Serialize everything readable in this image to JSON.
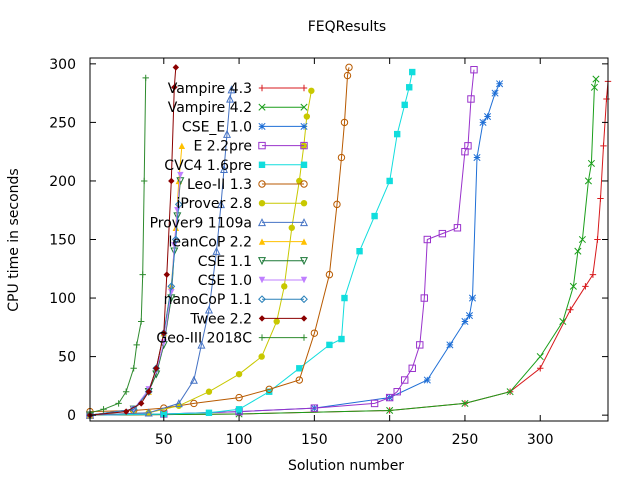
{
  "chart_data": {
    "type": "line",
    "title": "FEQResults",
    "xlabel": "Solution number",
    "ylabel": "CPU time in seconds",
    "xlim": [
      1,
      345
    ],
    "ylim": [
      -5,
      305
    ],
    "xticks": [
      50,
      100,
      150,
      200,
      250,
      300
    ],
    "yticks": [
      0,
      50,
      100,
      150,
      200,
      250,
      300
    ],
    "grid": false,
    "legend_position": "top-left",
    "series": [
      {
        "name": "Vampire 4.3",
        "color": "#d7191c",
        "marker": "plus",
        "x": [
          1,
          100,
          200,
          250,
          280,
          300,
          320,
          330,
          335,
          338,
          340,
          342,
          344,
          345
        ],
        "y": [
          0,
          1,
          4,
          10,
          20,
          40,
          90,
          110,
          120,
          150,
          185,
          230,
          270,
          285
        ]
      },
      {
        "name": "Vampire 4.2",
        "color": "#1a9e1a",
        "marker": "x",
        "x": [
          1,
          100,
          200,
          250,
          280,
          300,
          315,
          322,
          325,
          328,
          332,
          334,
          336,
          337
        ],
        "y": [
          0,
          1,
          4,
          10,
          20,
          50,
          80,
          110,
          140,
          150,
          200,
          215,
          280,
          287
        ]
      },
      {
        "name": "CSE_E 1.0",
        "color": "#1f6fd6",
        "marker": "star",
        "x": [
          1,
          50,
          100,
          150,
          200,
          225,
          240,
          250,
          253,
          255,
          258,
          262,
          265,
          270,
          273
        ],
        "y": [
          0,
          1,
          3,
          6,
          15,
          30,
          60,
          80,
          85,
          100,
          220,
          250,
          255,
          275,
          283
        ]
      },
      {
        "name": "E 2.2pre",
        "color": "#9932cc",
        "marker": "square",
        "x": [
          1,
          50,
          100,
          150,
          190,
          200,
          205,
          210,
          215,
          220,
          223,
          225,
          235,
          245,
          250,
          252,
          254,
          256
        ],
        "y": [
          0,
          1,
          3,
          6,
          10,
          15,
          20,
          30,
          40,
          60,
          100,
          150,
          155,
          160,
          225,
          230,
          270,
          295
        ]
      },
      {
        "name": "CVC4 1.6pre",
        "color": "#11dddd",
        "marker": "filled-square",
        "x": [
          1,
          50,
          80,
          100,
          120,
          140,
          160,
          168,
          170,
          180,
          190,
          200,
          205,
          210,
          213,
          215
        ],
        "y": [
          0,
          1,
          2,
          5,
          20,
          40,
          60,
          65,
          100,
          140,
          170,
          200,
          240,
          265,
          280,
          293
        ]
      },
      {
        "name": "Leo-II 1.3",
        "color": "#b85a00",
        "marker": "circle",
        "x": [
          1,
          30,
          50,
          70,
          100,
          120,
          140,
          150,
          160,
          165,
          168,
          170,
          172,
          173
        ],
        "y": [
          3,
          4,
          6,
          10,
          15,
          22,
          30,
          70,
          120,
          180,
          220,
          250,
          290,
          297
        ]
      },
      {
        "name": "iProver 2.8",
        "color": "#c8c800",
        "marker": "filled-circle",
        "x": [
          1,
          40,
          60,
          80,
          100,
          115,
          125,
          130,
          135,
          140,
          143,
          145,
          148
        ],
        "y": [
          0,
          2,
          8,
          20,
          35,
          50,
          80,
          110,
          160,
          200,
          230,
          255,
          277
        ]
      },
      {
        "name": "Prover9 1109a",
        "color": "#4472c4",
        "marker": "triangle",
        "x": [
          1,
          40,
          60,
          70,
          75,
          80,
          85,
          88,
          90,
          92,
          94,
          95
        ],
        "y": [
          0,
          2,
          10,
          30,
          60,
          90,
          140,
          180,
          210,
          240,
          270,
          278
        ]
      },
      {
        "name": "leanCoP 2.2",
        "color": "#ffc000",
        "marker": "filled-triangle",
        "x": [
          1,
          30,
          40,
          45,
          50,
          55,
          58,
          60,
          62
        ],
        "y": [
          0,
          5,
          20,
          40,
          70,
          110,
          160,
          200,
          230
        ]
      },
      {
        "name": "CSE 1.1",
        "color": "#1b7837",
        "marker": "inverted-triangle",
        "x": [
          1,
          30,
          40,
          45,
          50,
          55,
          57,
          59,
          61
        ],
        "y": [
          0,
          5,
          20,
          35,
          60,
          100,
          140,
          170,
          200
        ]
      },
      {
        "name": "CSE 1.0",
        "color": "#bf7fff",
        "marker": "filled-inverted-triangle",
        "x": [
          1,
          30,
          40,
          45,
          50,
          55,
          57,
          59,
          61
        ],
        "y": [
          0,
          5,
          22,
          38,
          62,
          105,
          145,
          175,
          205
        ]
      },
      {
        "name": "nanoCoP 1.1",
        "color": "#2980b9",
        "marker": "diamond",
        "x": [
          1,
          30,
          40,
          45,
          50,
          55,
          58,
          60
        ],
        "y": [
          0,
          5,
          20,
          40,
          70,
          110,
          150,
          180
        ]
      },
      {
        "name": "Twee 2.2",
        "color": "#8b0000",
        "marker": "filled-diamond",
        "x": [
          1,
          25,
          35,
          40,
          45,
          50,
          52,
          55,
          57,
          58
        ],
        "y": [
          0,
          3,
          10,
          20,
          40,
          70,
          120,
          200,
          280,
          297
        ]
      },
      {
        "name": "Geo-III 2018C",
        "color": "#2e8b2e",
        "marker": "plus",
        "x": [
          1,
          10,
          20,
          25,
          30,
          32,
          35,
          36,
          37,
          38
        ],
        "y": [
          2,
          5,
          10,
          20,
          40,
          60,
          80,
          120,
          200,
          288
        ]
      }
    ]
  }
}
